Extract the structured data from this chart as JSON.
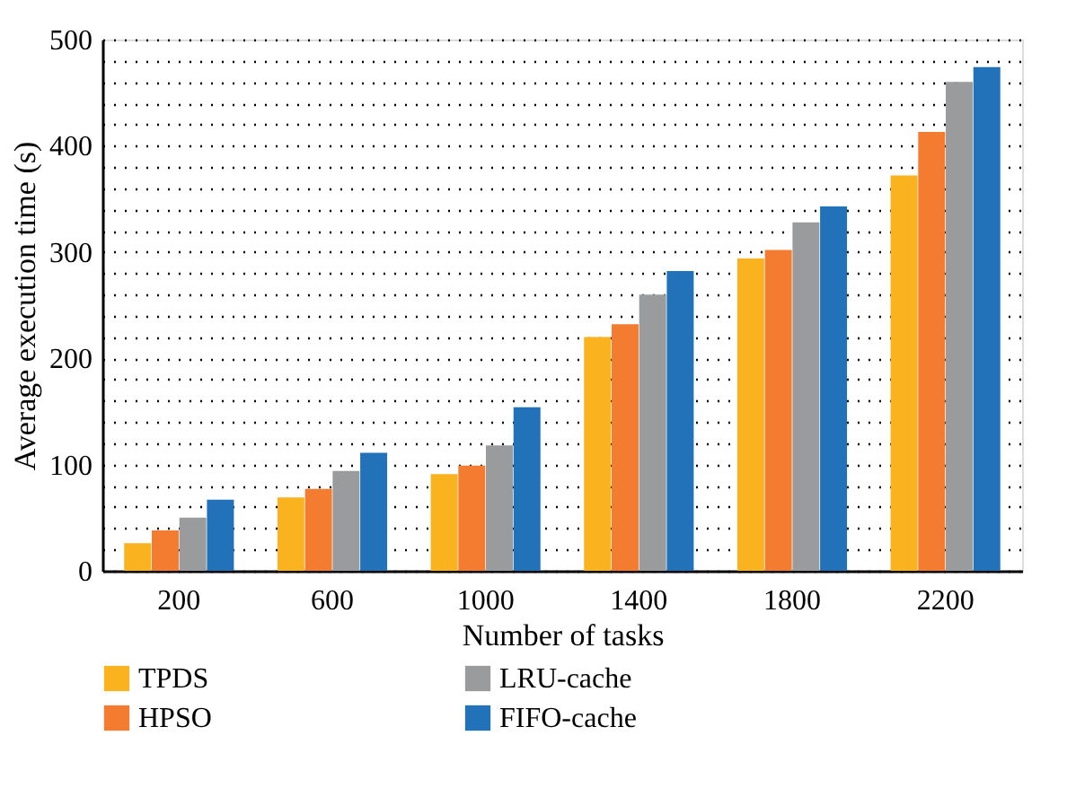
{
  "chart_data": {
    "type": "bar",
    "xlabel": "Number of tasks",
    "ylabel": "Average execution time (s)",
    "categories": [
      "200",
      "600",
      "1000",
      "1400",
      "1800",
      "2200"
    ],
    "series": [
      {
        "name": "TPDS",
        "color": "#fbb21f",
        "values": [
          26,
          69,
          91,
          220,
          294,
          372
        ]
      },
      {
        "name": "HPSO",
        "color": "#f47c30",
        "values": [
          38,
          77,
          99,
          232,
          302,
          413
        ]
      },
      {
        "name": "LRU-cache",
        "color": "#999b9c",
        "values": [
          50,
          94,
          118,
          260,
          328,
          460
        ]
      },
      {
        "name": "FIFO-cache",
        "color": "#2272ba",
        "values": [
          67,
          111,
          154,
          282,
          343,
          474
        ]
      }
    ],
    "ylim": [
      0,
      500
    ],
    "yticks": [
      0,
      {
        "value": 20,
        "label": null
      },
      {
        "value": 40,
        "label": null
      },
      {
        "value": 60,
        "label": null
      },
      {
        "value": 80,
        "label": null
      },
      100,
      {
        "value": 120,
        "label": null
      },
      {
        "value": 140,
        "label": null
      },
      {
        "value": 160,
        "label": null
      },
      {
        "value": 180,
        "label": null
      },
      200,
      {
        "value": 220,
        "label": null
      },
      {
        "value": 240,
        "label": null
      },
      {
        "value": 260,
        "label": null
      },
      {
        "value": 280,
        "label": null
      },
      300,
      {
        "value": 320,
        "label": null
      },
      {
        "value": 340,
        "label": null
      },
      {
        "value": 360,
        "label": null
      },
      {
        "value": 380,
        "label": null
      },
      400,
      {
        "value": 420,
        "label": null
      },
      {
        "value": 440,
        "label": null
      },
      {
        "value": 460,
        "label": null
      },
      {
        "value": 480,
        "label": null
      },
      500
    ],
    "grid": "y",
    "line_style": "dotted",
    "legend": "bottom"
  }
}
